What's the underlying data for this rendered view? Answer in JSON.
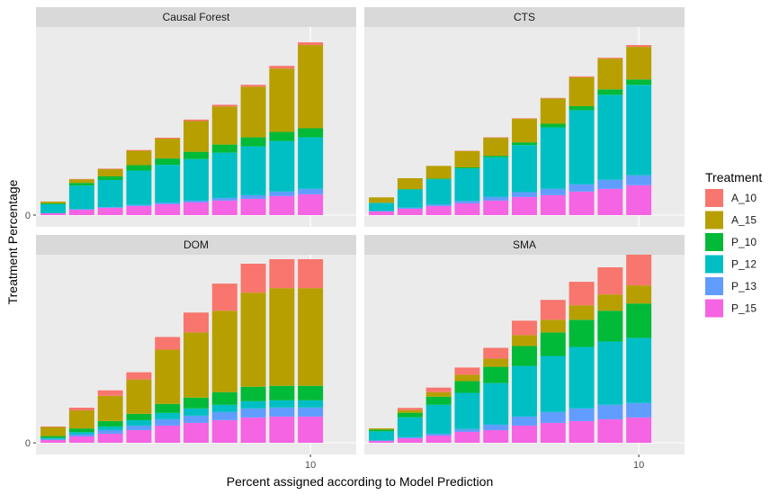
{
  "chart_data": {
    "type": "bar",
    "stacked": true,
    "facets": [
      "Causal Forest",
      "CTS",
      "DOM",
      "SMA"
    ],
    "xlabel": "Percent assigned according to Model Prediction",
    "ylabel": "Treatment Percentage",
    "x": [
      1,
      2,
      3,
      4,
      5,
      6,
      7,
      8,
      9,
      10
    ],
    "x_ticks": [
      "10"
    ],
    "y_ticks": [
      "0"
    ],
    "ylim": [
      0,
      100
    ],
    "grid": true,
    "legend": {
      "title": "Treatment",
      "placement": "right",
      "entries": [
        "A_10",
        "A_15",
        "P_10",
        "P_12",
        "P_13",
        "P_15"
      ]
    },
    "colors": {
      "A_10": "#F8766D",
      "A_15": "#B79F00",
      "P_10": "#00BA38",
      "P_12": "#00BFC4",
      "P_13": "#619CFF",
      "P_15": "#F564E3"
    },
    "panels": [
      {
        "name": "Causal Forest",
        "series": [
          {
            "name": "P_15",
            "values": [
              1,
              3,
              4,
              5,
              6,
              7,
              8,
              9,
              10.5,
              11.5
            ]
          },
          {
            "name": "P_13",
            "values": [
              0,
              0.3,
              0.4,
              0.6,
              0.8,
              1,
              1.5,
              2,
              2.5,
              3
            ]
          },
          {
            "name": "P_12",
            "values": [
              5,
              13,
              15,
              19,
              21,
              23,
              25,
              27,
              28,
              28.5
            ]
          },
          {
            "name": "P_10",
            "values": [
              0.5,
              1.5,
              2,
              3,
              3.5,
              4,
              4.5,
              5,
              5,
              5
            ]
          },
          {
            "name": "A_15",
            "values": [
              1,
              2,
              4,
              8,
              11,
              17,
              21,
              28,
              35,
              46
            ]
          },
          {
            "name": "A_10",
            "values": [
              0,
              0.2,
              0.3,
              0.4,
              0.5,
              0.8,
              1,
              1,
              1.5,
              1.5
            ]
          }
        ]
      },
      {
        "name": "CTS",
        "series": [
          {
            "name": "P_15",
            "values": [
              2,
              3.5,
              5,
              6.5,
              8,
              10,
              11,
              13,
              14.5,
              16.5
            ]
          },
          {
            "name": "P_13",
            "values": [
              0.3,
              0.6,
              0.8,
              1.3,
              2,
              2.7,
              3.5,
              4,
              5,
              5.5
            ]
          },
          {
            "name": "P_12",
            "values": [
              4.5,
              10,
              14,
              18,
              22,
              26,
              34,
              41,
              47,
              50
            ]
          },
          {
            "name": "P_10",
            "values": [
              0,
              0.3,
              0.4,
              0.6,
              0.8,
              1.5,
              2,
              2.2,
              3,
              3
            ]
          },
          {
            "name": "A_15",
            "values": [
              3,
              6,
              7,
              9,
              10,
              13,
              14,
              16,
              17,
              18
            ]
          },
          {
            "name": "A_10",
            "values": [
              0,
              0,
              0,
              0.2,
              0.2,
              0.3,
              0.3,
              0.5,
              0.5,
              1
            ]
          }
        ]
      },
      {
        "name": "DOM",
        "series": [
          {
            "name": "P_15",
            "values": [
              1.5,
              3.5,
              5,
              7,
              9.5,
              11,
              12.5,
              14,
              14.5,
              14.5
            ]
          },
          {
            "name": "P_13",
            "values": [
              0.6,
              1.2,
              2,
              2.5,
              3.5,
              4,
              4.5,
              5,
              5,
              5
            ]
          },
          {
            "name": "P_12",
            "values": [
              0.6,
              1.2,
              2,
              3,
              3.5,
              4,
              4,
              4,
              4,
              4
            ]
          },
          {
            "name": "P_10",
            "values": [
              1,
              2,
              3,
              3.5,
              5,
              6,
              7,
              8,
              8,
              8
            ]
          },
          {
            "name": "A_15",
            "values": [
              5,
              10,
              14,
              19,
              30,
              36,
              45,
              52,
              54,
              54
            ]
          },
          {
            "name": "A_10",
            "values": [
              0.3,
              1.5,
              3,
              4,
              7,
              11,
              15,
              16,
              16,
              16
            ]
          }
        ]
      },
      {
        "name": "SMA",
        "series": [
          {
            "name": "P_15",
            "values": [
              1,
              2.5,
              4,
              6,
              7,
              9.5,
              11,
              12,
              13,
              14
            ]
          },
          {
            "name": "P_13",
            "values": [
              0.3,
              0.6,
              1,
              1.6,
              3,
              5,
              6,
              7,
              8,
              8
            ]
          },
          {
            "name": "P_12",
            "values": [
              5,
              11,
              16,
              20,
              23,
              28,
              31,
              34,
              35,
              36
            ]
          },
          {
            "name": "P_10",
            "values": [
              1,
              2.5,
              4.5,
              6.5,
              9,
              11,
              13,
              15,
              17,
              19
            ]
          },
          {
            "name": "A_15",
            "values": [
              0.7,
              1.5,
              2.5,
              3.5,
              4.5,
              6,
              7,
              8,
              9,
              10
            ]
          },
          {
            "name": "A_10",
            "values": [
              0,
              1.2,
              2.5,
              4,
              6,
              8,
              11,
              13,
              15,
              17
            ]
          }
        ]
      }
    ]
  }
}
